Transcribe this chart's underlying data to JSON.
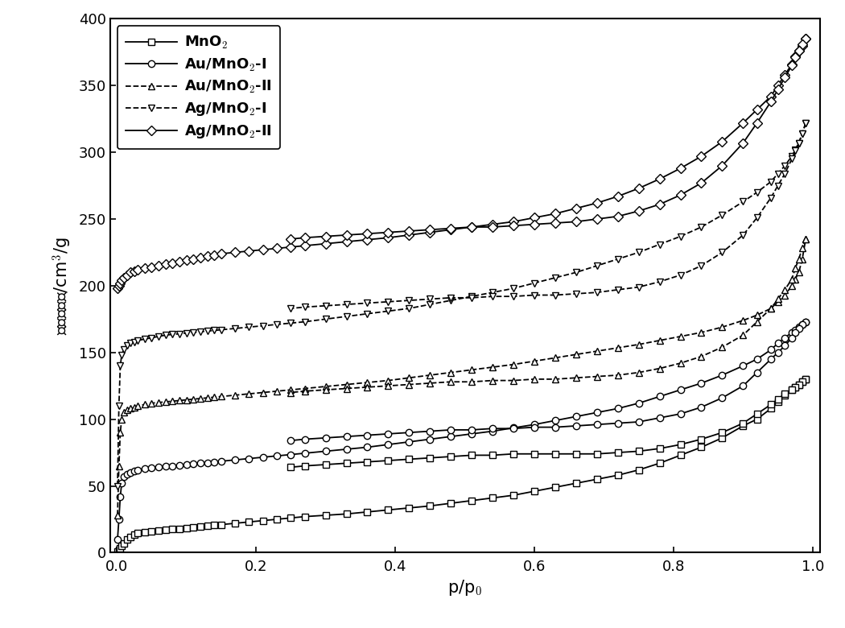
{
  "xlabel": "p/p$_0$",
  "ylabel": "吸脱附体积/cm$^3$/g",
  "xlim": [
    -0.01,
    1.01
  ],
  "ylim": [
    0,
    400
  ],
  "yticks": [
    0,
    50,
    100,
    150,
    200,
    250,
    300,
    350,
    400
  ],
  "xticks": [
    0.0,
    0.2,
    0.4,
    0.6,
    0.8,
    1.0
  ],
  "series": [
    {
      "label": "MnO$_2$",
      "marker": "s",
      "linestyle": "-",
      "color": "#000000",
      "adsorption_x": [
        0.001,
        0.003,
        0.005,
        0.007,
        0.01,
        0.015,
        0.02,
        0.025,
        0.03,
        0.04,
        0.05,
        0.06,
        0.07,
        0.08,
        0.09,
        0.1,
        0.11,
        0.12,
        0.13,
        0.14,
        0.15,
        0.17,
        0.19,
        0.21,
        0.23,
        0.25,
        0.27,
        0.3,
        0.33,
        0.36,
        0.39,
        0.42,
        0.45,
        0.48,
        0.51,
        0.54,
        0.57,
        0.6,
        0.63,
        0.66,
        0.69,
        0.72,
        0.75,
        0.78,
        0.81,
        0.84,
        0.87,
        0.9,
        0.92,
        0.94,
        0.95,
        0.96,
        0.97,
        0.975,
        0.98,
        0.985,
        0.99
      ],
      "adsorption_y": [
        1,
        2,
        3,
        5,
        7,
        10,
        12,
        13.5,
        14.5,
        15.5,
        16,
        16.5,
        17,
        17.5,
        18,
        18.5,
        19,
        19.5,
        20,
        20.5,
        21,
        22,
        23,
        24,
        25,
        26,
        27,
        28,
        29,
        30.5,
        32,
        33.5,
        35,
        37,
        39,
        41,
        43,
        46,
        49,
        52,
        55,
        58,
        62,
        67,
        73,
        79,
        86,
        95,
        100,
        108,
        113,
        118,
        122,
        124,
        126,
        128,
        130
      ],
      "desorption_x": [
        0.99,
        0.985,
        0.98,
        0.975,
        0.97,
        0.96,
        0.95,
        0.94,
        0.92,
        0.9,
        0.87,
        0.84,
        0.81,
        0.78,
        0.75,
        0.72,
        0.69,
        0.66,
        0.63,
        0.6,
        0.57,
        0.54,
        0.51,
        0.48,
        0.45,
        0.42,
        0.39,
        0.36,
        0.33,
        0.3,
        0.27,
        0.25
      ],
      "desorption_y": [
        130,
        128,
        126,
        124,
        122,
        119,
        115,
        111,
        104,
        97,
        90,
        85,
        81,
        78,
        76,
        75,
        74,
        74,
        74,
        74,
        74,
        73,
        73,
        72,
        71,
        70,
        69,
        68,
        67,
        66,
        65,
        64
      ]
    },
    {
      "label": "Au/MnO$_2$-I",
      "marker": "o",
      "linestyle": "-",
      "color": "#000000",
      "adsorption_x": [
        0.001,
        0.003,
        0.005,
        0.007,
        0.01,
        0.015,
        0.02,
        0.025,
        0.03,
        0.04,
        0.05,
        0.06,
        0.07,
        0.08,
        0.09,
        0.1,
        0.11,
        0.12,
        0.13,
        0.14,
        0.15,
        0.17,
        0.19,
        0.21,
        0.23,
        0.25,
        0.27,
        0.3,
        0.33,
        0.36,
        0.39,
        0.42,
        0.45,
        0.48,
        0.51,
        0.54,
        0.57,
        0.6,
        0.63,
        0.66,
        0.69,
        0.72,
        0.75,
        0.78,
        0.81,
        0.84,
        0.87,
        0.9,
        0.92,
        0.94,
        0.95,
        0.96,
        0.97,
        0.975,
        0.98,
        0.985,
        0.99
      ],
      "adsorption_y": [
        10,
        25,
        42,
        52,
        57,
        59,
        60,
        61,
        62,
        63,
        63.5,
        64,
        64.5,
        65,
        65.5,
        66,
        66.5,
        67,
        67.5,
        68,
        68.5,
        69.5,
        70.5,
        71.5,
        72.5,
        73.5,
        74.5,
        76,
        77.5,
        79,
        81,
        83,
        85,
        87,
        89,
        91,
        93.5,
        96,
        99,
        102,
        105,
        108,
        112,
        117,
        122,
        127,
        133,
        140,
        145,
        152,
        157,
        161,
        165,
        167,
        169,
        171,
        173
      ],
      "desorption_x": [
        0.99,
        0.985,
        0.98,
        0.975,
        0.97,
        0.96,
        0.95,
        0.94,
        0.92,
        0.9,
        0.87,
        0.84,
        0.81,
        0.78,
        0.75,
        0.72,
        0.69,
        0.66,
        0.63,
        0.6,
        0.57,
        0.54,
        0.51,
        0.48,
        0.45,
        0.42,
        0.39,
        0.36,
        0.33,
        0.3,
        0.27,
        0.25
      ],
      "desorption_y": [
        173,
        171,
        168,
        165,
        161,
        155,
        150,
        145,
        135,
        125,
        116,
        109,
        104,
        101,
        98,
        97,
        96,
        95,
        94,
        94,
        93,
        93,
        92,
        92,
        91,
        90,
        89,
        88,
        87,
        86,
        85,
        84
      ]
    },
    {
      "label": "Au/MnO$_2$-II",
      "marker": "^",
      "linestyle": "--",
      "color": "#000000",
      "adsorption_x": [
        0.001,
        0.003,
        0.005,
        0.007,
        0.01,
        0.015,
        0.02,
        0.025,
        0.03,
        0.04,
        0.05,
        0.06,
        0.07,
        0.08,
        0.09,
        0.1,
        0.11,
        0.12,
        0.13,
        0.14,
        0.15,
        0.17,
        0.19,
        0.21,
        0.23,
        0.25,
        0.27,
        0.3,
        0.33,
        0.36,
        0.39,
        0.42,
        0.45,
        0.48,
        0.51,
        0.54,
        0.57,
        0.6,
        0.63,
        0.66,
        0.69,
        0.72,
        0.75,
        0.78,
        0.81,
        0.84,
        0.87,
        0.9,
        0.92,
        0.94,
        0.95,
        0.96,
        0.97,
        0.975,
        0.98,
        0.985,
        0.99
      ],
      "adsorption_y": [
        28,
        65,
        90,
        100,
        105,
        107,
        108,
        109,
        110,
        111,
        112,
        112.5,
        113,
        113.5,
        114,
        114.5,
        115,
        115.5,
        116,
        116.5,
        117,
        118,
        119,
        120,
        121,
        122,
        123,
        124.5,
        126,
        127.5,
        129,
        131,
        133,
        135,
        137,
        139,
        141,
        143.5,
        146,
        148.5,
        151,
        153.5,
        156,
        159,
        162,
        165,
        169,
        174,
        178,
        183,
        188,
        193,
        200,
        205,
        210,
        220,
        235
      ],
      "desorption_x": [
        0.99,
        0.985,
        0.98,
        0.975,
        0.97,
        0.96,
        0.95,
        0.94,
        0.92,
        0.9,
        0.87,
        0.84,
        0.81,
        0.78,
        0.75,
        0.72,
        0.69,
        0.66,
        0.63,
        0.6,
        0.57,
        0.54,
        0.51,
        0.48,
        0.45,
        0.42,
        0.39,
        0.36,
        0.33,
        0.3,
        0.27,
        0.25
      ],
      "desorption_y": [
        235,
        228,
        220,
        213,
        205,
        197,
        190,
        183,
        173,
        163,
        154,
        147,
        142,
        138,
        135,
        133,
        132,
        131,
        130,
        130,
        129,
        129,
        128,
        128,
        127,
        126,
        125,
        124,
        123,
        122,
        121,
        120
      ]
    },
    {
      "label": "Ag/MnO$_2$-I",
      "marker": "v",
      "linestyle": "--",
      "color": "#000000",
      "adsorption_x": [
        0.001,
        0.003,
        0.005,
        0.007,
        0.01,
        0.015,
        0.02,
        0.025,
        0.03,
        0.04,
        0.05,
        0.06,
        0.07,
        0.08,
        0.09,
        0.1,
        0.11,
        0.12,
        0.13,
        0.14,
        0.15,
        0.17,
        0.19,
        0.21,
        0.23,
        0.25,
        0.27,
        0.3,
        0.33,
        0.36,
        0.39,
        0.42,
        0.45,
        0.48,
        0.51,
        0.54,
        0.57,
        0.6,
        0.63,
        0.66,
        0.69,
        0.72,
        0.75,
        0.78,
        0.81,
        0.84,
        0.87,
        0.9,
        0.92,
        0.94,
        0.95,
        0.96,
        0.97,
        0.975,
        0.98,
        0.985,
        0.99
      ],
      "adsorption_y": [
        50,
        110,
        140,
        148,
        152,
        155,
        157,
        158,
        159,
        160,
        161,
        162,
        163,
        163.5,
        164,
        164.5,
        165,
        165.5,
        166,
        166.5,
        167,
        168,
        169,
        170,
        171,
        172,
        173,
        175,
        177,
        179,
        181,
        183,
        186,
        189,
        192,
        195,
        198,
        202,
        206,
        210,
        215,
        220,
        225,
        231,
        237,
        244,
        253,
        263,
        270,
        278,
        284,
        290,
        297,
        302,
        307,
        314,
        322
      ],
      "desorption_x": [
        0.99,
        0.985,
        0.98,
        0.975,
        0.97,
        0.96,
        0.95,
        0.94,
        0.92,
        0.9,
        0.87,
        0.84,
        0.81,
        0.78,
        0.75,
        0.72,
        0.69,
        0.66,
        0.63,
        0.6,
        0.57,
        0.54,
        0.51,
        0.48,
        0.45,
        0.42,
        0.39,
        0.36,
        0.33,
        0.3,
        0.27,
        0.25
      ],
      "desorption_y": [
        322,
        314,
        307,
        301,
        295,
        284,
        275,
        266,
        251,
        238,
        225,
        215,
        208,
        203,
        199,
        197,
        195,
        194,
        193,
        193,
        192,
        192,
        191,
        191,
        190,
        189,
        188,
        187,
        186,
        185,
        184,
        183
      ]
    },
    {
      "label": "Ag/MnO$_2$-II",
      "marker": "D",
      "linestyle": "-",
      "color": "#000000",
      "adsorption_x": [
        0.001,
        0.003,
        0.005,
        0.007,
        0.01,
        0.015,
        0.02,
        0.025,
        0.03,
        0.04,
        0.05,
        0.06,
        0.07,
        0.08,
        0.09,
        0.1,
        0.11,
        0.12,
        0.13,
        0.14,
        0.15,
        0.17,
        0.19,
        0.21,
        0.23,
        0.25,
        0.27,
        0.3,
        0.33,
        0.36,
        0.39,
        0.42,
        0.45,
        0.48,
        0.51,
        0.54,
        0.57,
        0.6,
        0.63,
        0.66,
        0.69,
        0.72,
        0.75,
        0.78,
        0.81,
        0.84,
        0.87,
        0.9,
        0.92,
        0.94,
        0.95,
        0.96,
        0.97,
        0.975,
        0.98,
        0.985,
        0.99
      ],
      "adsorption_y": [
        198,
        200,
        202,
        204,
        206,
        208,
        210,
        211,
        212,
        213,
        214,
        215,
        216,
        217,
        218,
        219,
        220,
        221,
        222,
        223,
        224,
        225,
        226,
        227,
        228,
        229,
        230,
        231.5,
        233,
        234.5,
        236,
        238,
        240,
        242,
        244,
        246,
        248,
        251,
        254,
        258,
        262,
        267,
        273,
        280,
        288,
        297,
        308,
        322,
        332,
        342,
        350,
        358,
        366,
        372,
        376,
        380,
        385
      ],
      "desorption_x": [
        0.99,
        0.985,
        0.98,
        0.975,
        0.97,
        0.96,
        0.95,
        0.94,
        0.92,
        0.9,
        0.87,
        0.84,
        0.81,
        0.78,
        0.75,
        0.72,
        0.69,
        0.66,
        0.63,
        0.6,
        0.57,
        0.54,
        0.51,
        0.48,
        0.45,
        0.42,
        0.39,
        0.36,
        0.33,
        0.3,
        0.27,
        0.25
      ],
      "desorption_y": [
        385,
        381,
        376,
        371,
        365,
        356,
        347,
        338,
        322,
        307,
        290,
        277,
        268,
        261,
        256,
        252,
        250,
        248,
        247,
        246,
        245,
        244,
        244,
        243,
        242,
        241,
        240,
        239,
        238,
        237,
        236,
        235
      ]
    }
  ],
  "background_color": "#ffffff",
  "line_width": 1.3,
  "marker_size": 6,
  "font_size": 13,
  "label_font_size": 15,
  "tick_font_size": 13,
  "legend_font_size": 13
}
